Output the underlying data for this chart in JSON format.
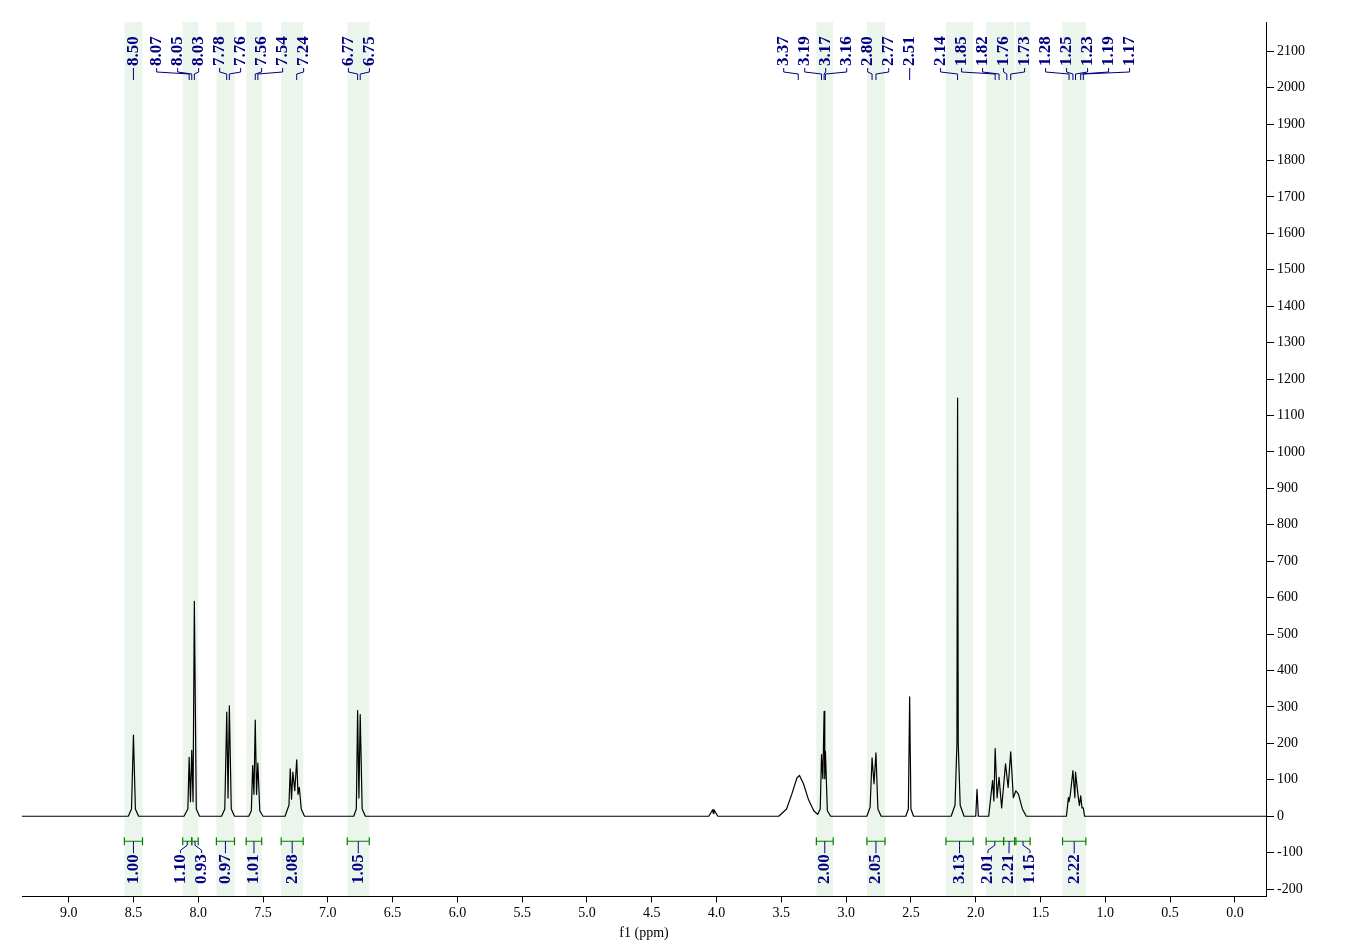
{
  "chart_data": {
    "type": "line",
    "xlabel": "f1 (ppm)",
    "grid": false,
    "legend": false,
    "marker": "none",
    "line_style": "solid",
    "xlim": [
      9.36,
      -0.24
    ],
    "xticks": [
      {
        "value": 9,
        "label": "9.0"
      },
      {
        "value": 8.5,
        "label": "8.5"
      },
      {
        "value": 8,
        "label": "8.0"
      },
      {
        "value": 7.5,
        "label": "7.5"
      },
      {
        "value": 7,
        "label": "7.0"
      },
      {
        "value": 6.5,
        "label": "6.5"
      },
      {
        "value": 6,
        "label": "6.0"
      },
      {
        "value": 5.5,
        "label": "5.5"
      },
      {
        "value": 5,
        "label": "5.0"
      },
      {
        "value": 4.5,
        "label": "4.5"
      },
      {
        "value": 4,
        "label": "4.0"
      },
      {
        "value": 3.5,
        "label": "3.5"
      },
      {
        "value": 3,
        "label": "3.0"
      },
      {
        "value": 2.5,
        "label": "2.5"
      },
      {
        "value": 2,
        "label": "2.0"
      },
      {
        "value": 1.5,
        "label": "1.5"
      },
      {
        "value": 1,
        "label": "1.0"
      },
      {
        "value": 0.5,
        "label": "0.5"
      },
      {
        "value": 0,
        "label": "0.0"
      }
    ],
    "ylim": [
      -220,
      2180
    ],
    "yticks": [
      -200,
      -100,
      0,
      100,
      200,
      300,
      400,
      500,
      600,
      700,
      800,
      900,
      1000,
      1100,
      1200,
      1300,
      1400,
      1500,
      1600,
      1700,
      1800,
      1900,
      2000,
      2100
    ],
    "series": [
      {
        "color": "#000000",
        "x": [
          9.36,
          8.54,
          8.515,
          8.5,
          8.485,
          8.46,
          8.11,
          8.08,
          8.07,
          8.06,
          8.05,
          8.04,
          8.03,
          8.015,
          7.99,
          7.82,
          7.795,
          7.78,
          7.77,
          7.76,
          7.745,
          7.72,
          7.61,
          7.59,
          7.58,
          7.57,
          7.56,
          7.55,
          7.54,
          7.525,
          7.5,
          7.33,
          7.3,
          7.29,
          7.28,
          7.27,
          7.255,
          7.24,
          7.23,
          7.22,
          7.205,
          7.18,
          6.8,
          6.78,
          6.77,
          6.76,
          6.75,
          6.735,
          6.71,
          4.06,
          4.03,
          4.025,
          4.02,
          3.99,
          3.52,
          3.46,
          3.42,
          3.38,
          3.36,
          3.33,
          3.29,
          3.25,
          3.22,
          3.2,
          3.19,
          3.18,
          3.17,
          3.165,
          3.16,
          3.145,
          3.12,
          2.84,
          2.815,
          2.8,
          2.785,
          2.77,
          2.755,
          2.73,
          2.54,
          2.52,
          2.51,
          2.5,
          2.48,
          2.19,
          2.16,
          2.145,
          2.14,
          2.135,
          2.12,
          2.09,
          2.0,
          1.99,
          1.98,
          1.9,
          1.87,
          1.86,
          1.85,
          1.835,
          1.82,
          1.8,
          1.77,
          1.75,
          1.73,
          1.71,
          1.69,
          1.67,
          1.64,
          1.61,
          1.3,
          1.285,
          1.28,
          1.27,
          1.25,
          1.235,
          1.23,
          1.21,
          1.2,
          1.19,
          1.18,
          1.17,
          1.16,
          -0.24
        ],
        "values": [
          0,
          0,
          20,
          223,
          20,
          0,
          0,
          20,
          162,
          40,
          181,
          40,
          590,
          20,
          0,
          0,
          20,
          286,
          50,
          303,
          20,
          0,
          0,
          15,
          139,
          60,
          264,
          60,
          146,
          15,
          0,
          0,
          30,
          130,
          47,
          121,
          70,
          155,
          60,
          79,
          20,
          0,
          0,
          20,
          290,
          50,
          279,
          20,
          0,
          0,
          18,
          8,
          18,
          0,
          0,
          20,
          60,
          105,
          112,
          90,
          45,
          15,
          5,
          20,
          169,
          103,
          288,
          103,
          178,
          15,
          0,
          0,
          25,
          160,
          89,
          174,
          20,
          0,
          0,
          20,
          328,
          20,
          0,
          0,
          30,
          200,
          1148,
          200,
          30,
          0,
          0,
          74,
          0,
          0,
          98,
          42,
          186,
          51,
          107,
          23,
          144,
          79,
          177,
          51,
          70,
          60,
          20,
          0,
          0,
          51,
          40,
          60,
          125,
          51,
          121,
          56,
          30,
          56,
          23,
          23,
          0,
          0
        ]
      }
    ],
    "annotations": [
      {
        "text": "8.50",
        "x": 8.5
      },
      {
        "text": "8.07",
        "x": 8.07
      },
      {
        "text": "8.05",
        "x": 8.05
      },
      {
        "text": "8.03",
        "x": 8.03
      },
      {
        "text": "7.78",
        "x": 7.78
      },
      {
        "text": "7.76",
        "x": 7.76
      },
      {
        "text": "7.56",
        "x": 7.56
      },
      {
        "text": "7.54",
        "x": 7.54
      },
      {
        "text": "7.24",
        "x": 7.24
      },
      {
        "text": "6.77",
        "x": 6.77
      },
      {
        "text": "6.75",
        "x": 6.75
      },
      {
        "text": "3.37",
        "x": 3.37
      },
      {
        "text": "3.19",
        "x": 3.19
      },
      {
        "text": "3.17",
        "x": 3.17
      },
      {
        "text": "3.16",
        "x": 3.16
      },
      {
        "text": "2.80",
        "x": 2.8
      },
      {
        "text": "2.77",
        "x": 2.77
      },
      {
        "text": "2.51",
        "x": 2.51
      },
      {
        "text": "2.14",
        "x": 2.14
      },
      {
        "text": "1.85",
        "x": 1.85
      },
      {
        "text": "1.82",
        "x": 1.82
      },
      {
        "text": "1.76",
        "x": 1.76
      },
      {
        "text": "1.73",
        "x": 1.73
      },
      {
        "text": "1.28",
        "x": 1.28
      },
      {
        "text": "1.25",
        "x": 1.25
      },
      {
        "text": "1.23",
        "x": 1.23
      },
      {
        "text": "1.19",
        "x": 1.19
      },
      {
        "text": "1.17",
        "x": 1.17
      }
    ],
    "bands": [
      {
        "axis": "x",
        "from": 8.57,
        "to": 8.43,
        "label": "1.00",
        "color": "#008000"
      },
      {
        "axis": "x",
        "from": 8.12,
        "to": 8.05,
        "label": "1.10",
        "color": "#008000"
      },
      {
        "axis": "x",
        "from": 8.05,
        "to": 8.0,
        "label": "0.93",
        "color": "#008000"
      },
      {
        "axis": "x",
        "from": 7.86,
        "to": 7.72,
        "label": "0.97",
        "color": "#008000"
      },
      {
        "axis": "x",
        "from": 7.63,
        "to": 7.51,
        "label": "1.01",
        "color": "#008000"
      },
      {
        "axis": "x",
        "from": 7.36,
        "to": 7.19,
        "label": "2.08",
        "color": "#008000"
      },
      {
        "axis": "x",
        "from": 6.85,
        "to": 6.68,
        "label": "1.05",
        "color": "#008000"
      },
      {
        "axis": "x",
        "from": 3.23,
        "to": 3.1,
        "label": "2.00",
        "color": "#008000"
      },
      {
        "axis": "x",
        "from": 2.84,
        "to": 2.7,
        "label": "2.05",
        "color": "#008000"
      },
      {
        "axis": "x",
        "from": 2.23,
        "to": 2.02,
        "label": "3.13",
        "color": "#008000"
      },
      {
        "axis": "x",
        "from": 1.92,
        "to": 1.785,
        "label": "2.01",
        "color": "#008000"
      },
      {
        "axis": "x",
        "from": 1.785,
        "to": 1.7,
        "label": "2.21",
        "color": "#008000"
      },
      {
        "axis": "x",
        "from": 1.69,
        "to": 1.58,
        "label": "1.15",
        "color": "#008000"
      },
      {
        "axis": "x",
        "from": 1.33,
        "to": 1.15,
        "label": "2.22",
        "color": "#008000"
      }
    ]
  }
}
